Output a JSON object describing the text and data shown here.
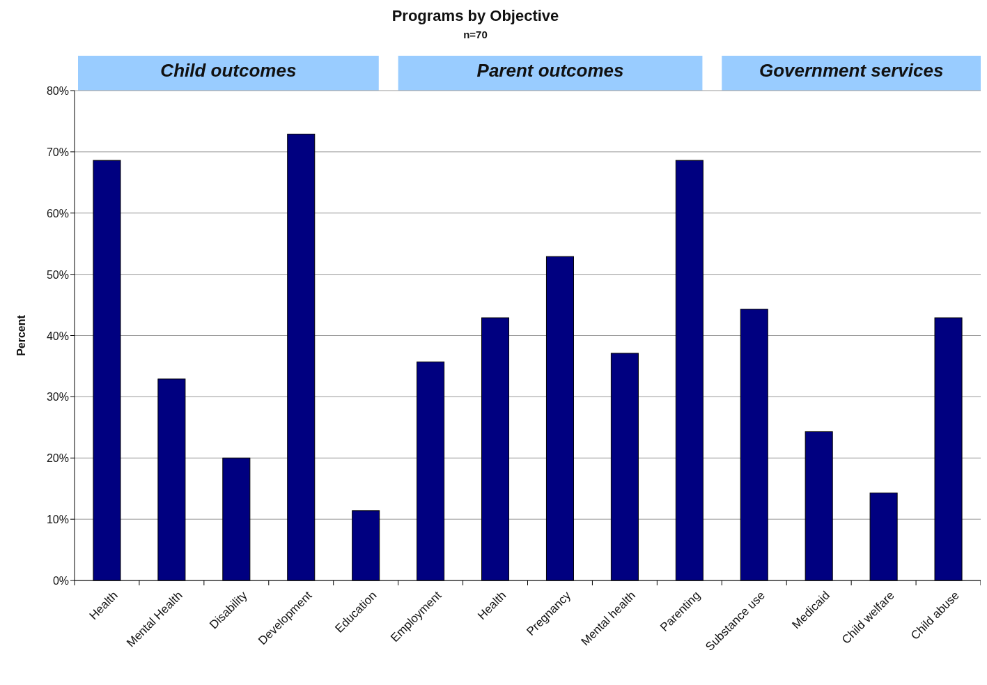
{
  "chart_data": {
    "type": "bar",
    "title": "Programs by Objective",
    "subtitle": "n=70",
    "ylabel": "Percent",
    "categories": [
      "Health",
      "Mental Health",
      "Disability",
      "Development",
      "Education",
      "Employment",
      "Health",
      "Pregnancy",
      "Mental health",
      "Parenting",
      "Substance use",
      "Medicaid",
      "Child welfare",
      "Child abuse"
    ],
    "values": [
      68.6,
      32.9,
      20.0,
      72.9,
      11.4,
      35.7,
      42.9,
      52.9,
      37.1,
      68.6,
      44.3,
      24.3,
      14.3,
      42.9
    ],
    "color": "#000080",
    "ylim": [
      0,
      80
    ],
    "yticks": [
      {
        "value": 0,
        "label": "0%"
      },
      {
        "value": 10,
        "label": "10%"
      },
      {
        "value": 20,
        "label": "20%"
      },
      {
        "value": 30,
        "label": "30%"
      },
      {
        "value": 40,
        "label": "40%"
      },
      {
        "value": 50,
        "label": "50%"
      },
      {
        "value": 60,
        "label": "60%"
      },
      {
        "value": 70,
        "label": "70%"
      },
      {
        "value": 80,
        "label": "80%"
      }
    ],
    "grid": "y",
    "annotations": [
      "Child outcomes",
      "Parent outcomes",
      "Government services"
    ]
  }
}
